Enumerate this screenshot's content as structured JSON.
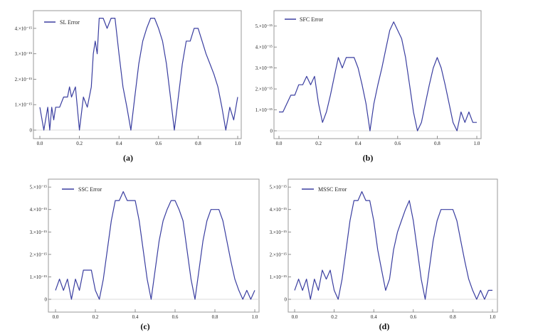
{
  "chart_data": [
    {
      "type": "line",
      "caption": "(a)",
      "legend": "SL Error",
      "color": "#3a3ea0",
      "x_ticks": [
        "0.0",
        "0.2",
        "0.4",
        "0.6",
        "0.8",
        "1.0"
      ],
      "y_ticks": [
        "0",
        "1.×10⁻¹⁵",
        "2.×10⁻¹⁵",
        "3.×10⁻¹⁵",
        "4.×10⁻¹⁵"
      ],
      "xlim": [
        0,
        1
      ],
      "ylim": [
        0,
        4.5
      ],
      "x": [
        0.0,
        0.02,
        0.04,
        0.05,
        0.06,
        0.07,
        0.08,
        0.1,
        0.12,
        0.14,
        0.15,
        0.16,
        0.18,
        0.2,
        0.22,
        0.24,
        0.26,
        0.27,
        0.28,
        0.29,
        0.3,
        0.32,
        0.34,
        0.36,
        0.38,
        0.4,
        0.42,
        0.44,
        0.46,
        0.48,
        0.5,
        0.52,
        0.54,
        0.56,
        0.58,
        0.6,
        0.62,
        0.64,
        0.66,
        0.68,
        0.7,
        0.72,
        0.74,
        0.76,
        0.78,
        0.8,
        0.82,
        0.84,
        0.86,
        0.88,
        0.9,
        0.92,
        0.94,
        0.96,
        0.98,
        1.0
      ],
      "values": [
        0.9,
        0.0,
        0.9,
        0.0,
        0.9,
        0.4,
        0.9,
        0.9,
        1.3,
        1.3,
        1.7,
        1.3,
        1.7,
        0.0,
        1.3,
        0.9,
        1.7,
        3.0,
        3.5,
        3.0,
        4.4,
        4.4,
        4.0,
        4.4,
        4.4,
        3.0,
        1.7,
        0.9,
        0.0,
        1.3,
        2.6,
        3.5,
        4.0,
        4.4,
        4.4,
        4.0,
        3.5,
        2.6,
        1.3,
        0.0,
        1.3,
        2.6,
        3.5,
        3.5,
        4.0,
        4.0,
        3.5,
        3.0,
        2.6,
        2.2,
        1.7,
        0.9,
        0.0,
        0.9,
        0.4,
        1.3
      ]
    },
    {
      "type": "line",
      "caption": "(b)",
      "legend": "SFC Error",
      "color": "#3a3ea0",
      "x_ticks": [
        "0.0",
        "0.2",
        "0.4",
        "0.6",
        "0.8",
        "1.0"
      ],
      "y_ticks": [
        "0",
        "1.×10⁻¹⁵",
        "2.×10⁻¹⁵",
        "3.×10⁻¹⁵",
        "4.×10⁻¹⁵",
        "5.×10⁻¹⁵"
      ],
      "xlim": [
        0,
        1
      ],
      "ylim": [
        0,
        5.5
      ],
      "x": [
        0.0,
        0.02,
        0.04,
        0.06,
        0.08,
        0.1,
        0.12,
        0.14,
        0.16,
        0.18,
        0.2,
        0.22,
        0.24,
        0.26,
        0.28,
        0.3,
        0.32,
        0.34,
        0.36,
        0.38,
        0.4,
        0.42,
        0.44,
        0.46,
        0.48,
        0.5,
        0.52,
        0.54,
        0.56,
        0.58,
        0.6,
        0.62,
        0.64,
        0.66,
        0.68,
        0.7,
        0.72,
        0.74,
        0.76,
        0.78,
        0.8,
        0.82,
        0.84,
        0.86,
        0.88,
        0.9,
        0.92,
        0.94,
        0.96,
        0.98,
        1.0
      ],
      "values": [
        0.9,
        0.9,
        1.3,
        1.7,
        1.7,
        2.2,
        2.2,
        2.6,
        2.2,
        2.6,
        1.3,
        0.4,
        0.9,
        1.7,
        2.6,
        3.5,
        3.0,
        3.5,
        3.5,
        3.5,
        3.0,
        2.2,
        1.3,
        0.0,
        1.3,
        2.2,
        3.0,
        3.9,
        4.8,
        5.2,
        4.8,
        4.4,
        3.5,
        2.2,
        0.9,
        0.0,
        0.4,
        1.3,
        2.2,
        3.0,
        3.5,
        3.0,
        2.2,
        1.3,
        0.4,
        0.0,
        0.9,
        0.4,
        0.9,
        0.4,
        0.4
      ]
    },
    {
      "type": "line",
      "caption": "(c)",
      "legend": "SSC Error",
      "color": "#3a3ea0",
      "x_ticks": [
        "0.0",
        "0.2",
        "0.4",
        "0.6",
        "0.8",
        "1.0"
      ],
      "y_ticks": [
        "0",
        "1.×10⁻¹⁵",
        "2.×10⁻¹⁵",
        "3.×10⁻¹⁵",
        "4.×10⁻¹⁵",
        "5.×10⁻¹⁵"
      ],
      "xlim": [
        0,
        1
      ],
      "ylim": [
        0,
        5.1
      ],
      "x": [
        0.0,
        0.02,
        0.04,
        0.06,
        0.08,
        0.1,
        0.12,
        0.14,
        0.16,
        0.18,
        0.2,
        0.22,
        0.24,
        0.26,
        0.28,
        0.3,
        0.32,
        0.34,
        0.36,
        0.38,
        0.4,
        0.42,
        0.44,
        0.46,
        0.48,
        0.5,
        0.52,
        0.54,
        0.56,
        0.58,
        0.6,
        0.62,
        0.64,
        0.66,
        0.68,
        0.7,
        0.72,
        0.74,
        0.76,
        0.78,
        0.8,
        0.82,
        0.84,
        0.86,
        0.88,
        0.9,
        0.92,
        0.94,
        0.96,
        0.98,
        1.0
      ],
      "values": [
        0.4,
        0.9,
        0.4,
        0.9,
        0.0,
        0.9,
        0.4,
        1.3,
        1.3,
        1.3,
        0.4,
        0.0,
        0.9,
        2.2,
        3.5,
        4.4,
        4.4,
        4.8,
        4.4,
        4.4,
        4.4,
        3.5,
        2.2,
        0.9,
        0.0,
        1.3,
        2.6,
        3.5,
        4.0,
        4.4,
        4.4,
        4.0,
        3.5,
        2.2,
        0.9,
        0.0,
        1.3,
        2.6,
        3.5,
        4.0,
        4.0,
        4.0,
        3.5,
        2.6,
        1.7,
        0.9,
        0.4,
        0.0,
        0.4,
        0.0,
        0.4
      ]
    },
    {
      "type": "line",
      "caption": "(d)",
      "legend": "MSSC Error",
      "color": "#3a3ea0",
      "x_ticks": [
        "0.0",
        "0.2",
        "0.4",
        "0.6",
        "0.8",
        "1.0"
      ],
      "y_ticks": [
        "0",
        "1.×10⁻¹⁵",
        "2.×10⁻¹⁵",
        "3.×10⁻¹⁵",
        "4.×10⁻¹⁵",
        "5.×10⁻¹⁵"
      ],
      "xlim": [
        0,
        1
      ],
      "ylim": [
        0,
        5.1
      ],
      "x": [
        0.0,
        0.02,
        0.04,
        0.06,
        0.08,
        0.1,
        0.12,
        0.14,
        0.16,
        0.18,
        0.2,
        0.22,
        0.24,
        0.26,
        0.28,
        0.3,
        0.32,
        0.34,
        0.36,
        0.38,
        0.4,
        0.42,
        0.44,
        0.46,
        0.48,
        0.5,
        0.52,
        0.54,
        0.56,
        0.58,
        0.6,
        0.62,
        0.64,
        0.66,
        0.68,
        0.7,
        0.72,
        0.74,
        0.76,
        0.78,
        0.8,
        0.82,
        0.84,
        0.86,
        0.88,
        0.9,
        0.92,
        0.94,
        0.96,
        0.98,
        1.0
      ],
      "values": [
        0.4,
        0.9,
        0.4,
        0.9,
        0.0,
        0.9,
        0.4,
        1.3,
        0.9,
        1.3,
        0.4,
        0.0,
        0.9,
        2.2,
        3.5,
        4.4,
        4.4,
        4.8,
        4.4,
        4.4,
        3.5,
        2.2,
        1.3,
        0.4,
        0.9,
        2.2,
        3.0,
        3.5,
        4.0,
        4.4,
        3.5,
        2.2,
        0.9,
        0.0,
        1.3,
        2.6,
        3.5,
        4.0,
        4.0,
        4.0,
        4.0,
        3.5,
        2.6,
        1.7,
        0.9,
        0.4,
        0.0,
        0.4,
        0.0,
        0.4,
        0.4
      ]
    }
  ]
}
